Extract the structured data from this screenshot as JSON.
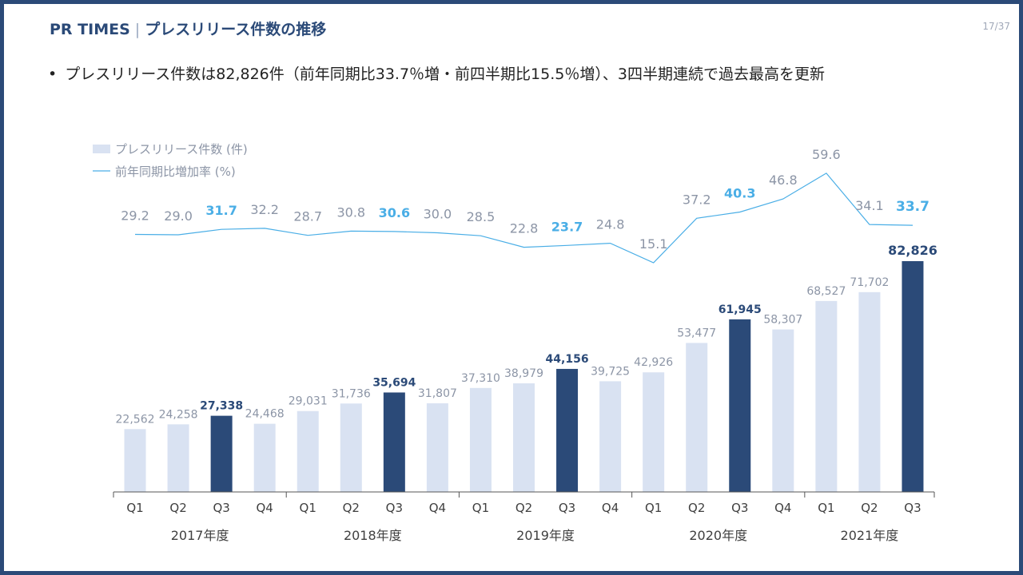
{
  "header": {
    "brand": "PR TIMES",
    "separator": "|",
    "title": "プレスリリース件数の推移"
  },
  "page_number": "17/37",
  "bullet": {
    "marker": "•",
    "text": "プレスリリース件数は82,826件（前年同期比33.7％増・前四半期比15.5％増）、3四半期連続で過去最高を更新"
  },
  "colors": {
    "light_bar": "#d9e2f2",
    "dark_bar": "#2b4a78",
    "line": "#4aaee6",
    "highlight_label": "#4aaee6",
    "muted_label": "#8c95a6",
    "dark_label": "#2b4a78",
    "axis": "#555555"
  },
  "chart_data": {
    "type": "bar",
    "legend": [
      {
        "name": "プレスリリース件数 (件)",
        "kind": "bar"
      },
      {
        "name": "前年同期比増加率 (%)",
        "kind": "line"
      }
    ],
    "categories": [
      "Q1",
      "Q2",
      "Q3",
      "Q4",
      "Q1",
      "Q2",
      "Q3",
      "Q4",
      "Q1",
      "Q2",
      "Q3",
      "Q4",
      "Q1",
      "Q2",
      "Q3",
      "Q4",
      "Q1",
      "Q2",
      "Q3"
    ],
    "years": [
      {
        "label": "2017年度",
        "start": 0,
        "count": 4
      },
      {
        "label": "2018年度",
        "start": 4,
        "count": 4
      },
      {
        "label": "2019年度",
        "start": 8,
        "count": 4
      },
      {
        "label": "2020年度",
        "start": 12,
        "count": 4
      },
      {
        "label": "2021年度",
        "start": 16,
        "count": 3
      }
    ],
    "series": [
      {
        "name": "プレスリリース件数 (件)",
        "kind": "bar",
        "values": [
          22562,
          24258,
          27338,
          24468,
          29031,
          31736,
          35694,
          31807,
          37310,
          38979,
          44156,
          39725,
          42926,
          53477,
          61945,
          58307,
          68527,
          71702,
          82826
        ],
        "labels": [
          "22,562",
          "24,258",
          "27,338",
          "24,468",
          "29,031",
          "31,736",
          "35,694",
          "31,807",
          "37,310",
          "38,979",
          "44,156",
          "39,725",
          "42,926",
          "53,477",
          "61,945",
          "58,307",
          "68,527",
          "71,702",
          "82,826"
        ],
        "highlight": [
          2,
          6,
          10,
          14,
          18
        ]
      },
      {
        "name": "前年同期比増加率 (%)",
        "kind": "line",
        "values": [
          29.2,
          29.0,
          31.7,
          32.2,
          28.7,
          30.8,
          30.6,
          30.0,
          28.5,
          22.8,
          23.7,
          24.8,
          15.1,
          37.2,
          40.3,
          46.8,
          59.6,
          34.1,
          33.7
        ],
        "labels": [
          "29.2",
          "29.0",
          "31.7",
          "32.2",
          "28.7",
          "30.8",
          "30.6",
          "30.0",
          "28.5",
          "22.8",
          "23.7",
          "24.8",
          "15.1",
          "37.2",
          "40.3",
          "46.8",
          "59.6",
          "34.1",
          "33.7"
        ],
        "highlight": [
          2,
          6,
          10,
          14,
          18
        ]
      }
    ],
    "ylim_bars": [
      0,
      90000
    ],
    "ylim_line": [
      0,
      70
    ]
  }
}
